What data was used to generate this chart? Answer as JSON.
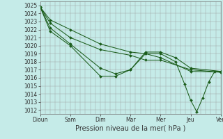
{
  "xlabel": "Pression niveau de la mer( hPa )",
  "ylim": [
    1011.5,
    1025.5
  ],
  "yticks": [
    1012,
    1013,
    1014,
    1015,
    1016,
    1017,
    1018,
    1019,
    1020,
    1021,
    1022,
    1023,
    1024,
    1025
  ],
  "xtick_labels": [
    "Dioun",
    "Sam",
    "Dim",
    "Mar",
    "Mer",
    "Jeu",
    "Ven"
  ],
  "background_color": "#c5ebe8",
  "grid_color": "#999999",
  "line_color": "#1a5c1a",
  "lines": [
    {
      "x": [
        0,
        0.5,
        1.5,
        3.0,
        4.5,
        5.25,
        6.0,
        7.5,
        9.0
      ],
      "y": [
        1024.8,
        1023.2,
        1022.0,
        1020.2,
        1019.2,
        1019.0,
        1018.5,
        1016.8,
        1016.7
      ]
    },
    {
      "x": [
        0,
        0.5,
        1.5,
        3.0,
        4.5,
        5.25,
        6.0,
        7.5,
        9.0
      ],
      "y": [
        1024.8,
        1022.8,
        1021.0,
        1019.5,
        1018.8,
        1018.2,
        1018.2,
        1017.0,
        1016.7
      ]
    },
    {
      "x": [
        0,
        0.5,
        1.5,
        3.0,
        3.75,
        4.5,
        5.25,
        6.0,
        6.75,
        7.5,
        9.0
      ],
      "y": [
        1024.8,
        1022.2,
        1020.2,
        1017.2,
        1016.5,
        1017.0,
        1019.2,
        1019.2,
        1018.5,
        1017.2,
        1016.8
      ]
    },
    {
      "x": [
        0,
        0.5,
        1.5,
        3.0,
        3.75,
        4.5,
        5.25,
        6.0,
        6.75,
        7.2,
        7.5,
        7.8,
        8.1,
        8.4,
        8.7,
        9.0
      ],
      "y": [
        1024.8,
        1021.8,
        1020.0,
        1016.2,
        1016.2,
        1017.0,
        1019.0,
        1019.0,
        1018.0,
        1015.2,
        1013.2,
        1011.8,
        1013.5,
        1015.5,
        1016.8,
        1016.8
      ]
    }
  ],
  "xtick_positions": [
    0,
    1.5,
    3.0,
    4.5,
    6.0,
    7.5,
    9.0
  ],
  "total_x": 9.0,
  "marker": "D",
  "markersize": 2.0,
  "linewidth": 0.75,
  "xlabel_fontsize": 7,
  "tick_fontsize": 5.5
}
